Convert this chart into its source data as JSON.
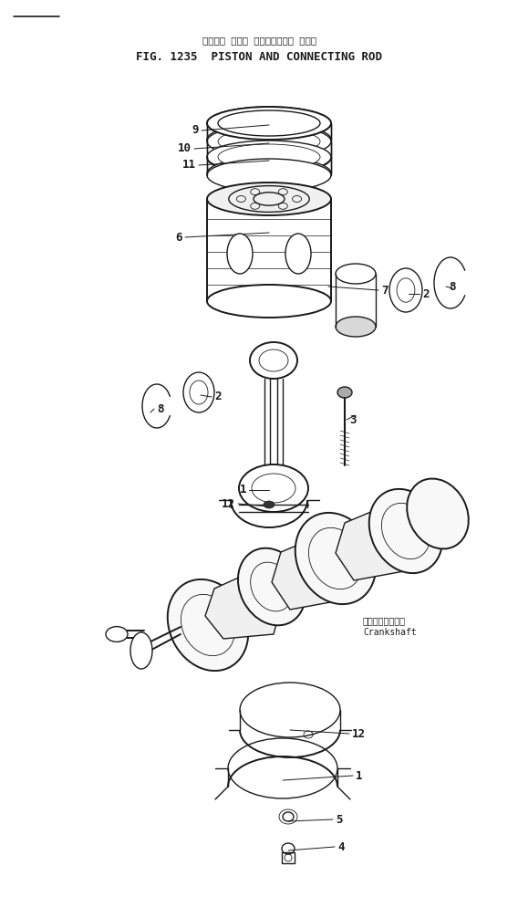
{
  "title_japanese": "ピストン および コネクティング ロッド",
  "title_english": "FIG. 1235  PISTON AND CONNECTING ROD",
  "background_color": "#ffffff",
  "line_color": "#1a1a1a",
  "crankshaft_label_jp": "クランクシャフト",
  "crankshaft_label_en": "Crankshaft",
  "fig_size": [
    5.68,
    9.83
  ],
  "dpi": 100
}
